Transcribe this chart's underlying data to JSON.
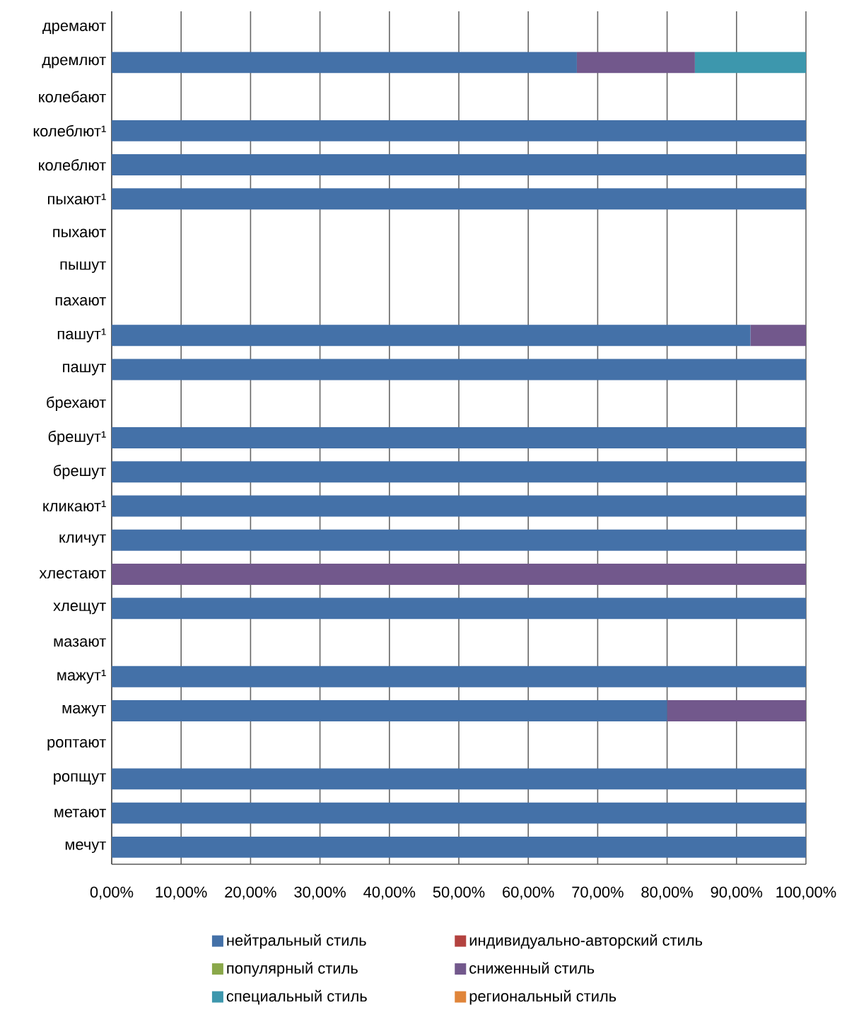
{
  "chart_data": {
    "type": "bar",
    "orientation": "horizontal",
    "stacked": true,
    "categories": [
      "дремают",
      "дремлют",
      "колебают",
      "колеблют¹",
      "колеблют",
      "пыхают¹",
      "пыхают",
      "пышут",
      "пахают",
      "пашут¹",
      "пашут",
      "брехают",
      "брешут¹",
      "брешут",
      "кликают¹",
      "кличут",
      "хлестают",
      "хлещут",
      "мазают",
      "мажут¹",
      "мажут",
      "роптают",
      "ропщут",
      "метают",
      "мечут"
    ],
    "series": [
      {
        "name": "нейтральный стиль",
        "color": "#4471a8",
        "values": [
          0,
          67,
          0,
          100,
          100,
          100,
          0,
          0,
          0,
          92,
          100,
          0,
          100,
          100,
          100,
          100,
          0,
          100,
          0,
          100,
          80,
          0,
          100,
          100,
          100
        ]
      },
      {
        "name": "индивидуально-авторский стиль",
        "color": "#b3423f",
        "values": [
          0,
          0,
          0,
          0,
          0,
          0,
          0,
          0,
          0,
          0,
          0,
          0,
          0,
          0,
          0,
          0,
          0,
          0,
          0,
          0,
          0,
          0,
          0,
          0,
          0
        ]
      },
      {
        "name": "популярный стиль",
        "color": "#8aa84a",
        "values": [
          0,
          0,
          0,
          0,
          0,
          0,
          0,
          0,
          0,
          0,
          0,
          0,
          0,
          0,
          0,
          0,
          0,
          0,
          0,
          0,
          0,
          0,
          0,
          0,
          0
        ]
      },
      {
        "name": "сниженный стиль",
        "color": "#72588c",
        "values": [
          0,
          17,
          0,
          0,
          0,
          0,
          0,
          0,
          0,
          8,
          0,
          0,
          0,
          0,
          0,
          0,
          100,
          0,
          0,
          0,
          20,
          0,
          0,
          0,
          0
        ]
      },
      {
        "name": "специальный стиль",
        "color": "#3d97ad",
        "values": [
          0,
          16,
          0,
          0,
          0,
          0,
          0,
          0,
          0,
          0,
          0,
          0,
          0,
          0,
          0,
          0,
          0,
          0,
          0,
          0,
          0,
          0,
          0,
          0,
          0
        ]
      },
      {
        "name": "региональный стиль",
        "color": "#e0853a",
        "values": [
          0,
          0,
          0,
          0,
          0,
          0,
          0,
          0,
          0,
          0,
          0,
          0,
          0,
          0,
          0,
          0,
          0,
          0,
          0,
          0,
          0,
          0,
          0,
          0,
          0
        ]
      }
    ],
    "xlim": [
      0,
      100
    ],
    "xticks": [
      {
        "value": 0,
        "label": "0,00%"
      },
      {
        "value": 10,
        "label": "10,00%"
      },
      {
        "value": 20,
        "label": "20,00%"
      },
      {
        "value": 30,
        "label": "30,00%"
      },
      {
        "value": 40,
        "label": "40,00%"
      },
      {
        "value": 50,
        "label": "50,00%"
      },
      {
        "value": 60,
        "label": "60,00%"
      },
      {
        "value": 70,
        "label": "70,00%"
      },
      {
        "value": 80,
        "label": "80,00%"
      },
      {
        "value": 90,
        "label": "90,00%"
      },
      {
        "value": 100,
        "label": "100,00%"
      }
    ],
    "grid": "x",
    "legend": "bottom"
  }
}
